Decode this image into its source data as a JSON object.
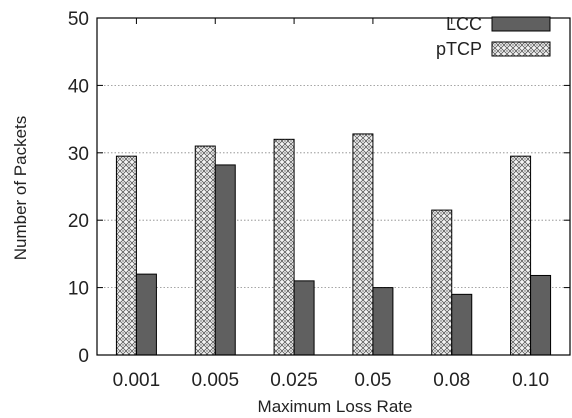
{
  "chart_data": {
    "type": "bar",
    "categories": [
      "0.001",
      "0.005",
      "0.025",
      "0.05",
      "0.08",
      "0.10"
    ],
    "series": [
      {
        "name": "pTCP",
        "values": [
          29.5,
          31,
          32,
          32.8,
          21.5,
          29.5
        ],
        "fill": "pattern"
      },
      {
        "name": "LCC",
        "values": [
          12,
          28.2,
          11,
          10,
          9,
          11.8
        ],
        "color": "#606060"
      }
    ],
    "title": "",
    "xlabel": "Maximum Loss Rate",
    "ylabel": "Number of Packets",
    "ylim": [
      0,
      50
    ],
    "yticks": [
      "0",
      "10",
      "20",
      "30",
      "40",
      "50"
    ],
    "grid": true,
    "legend_position": "top-right",
    "legend": [
      {
        "label": "LCC",
        "series": "LCC"
      },
      {
        "label": "pTCP",
        "series": "pTCP"
      }
    ]
  }
}
